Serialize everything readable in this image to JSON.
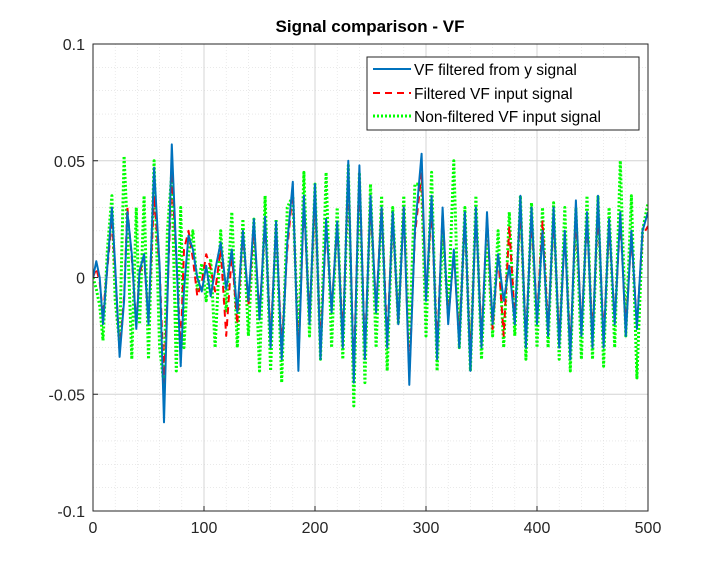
{
  "chart_data": {
    "type": "line",
    "title": "Signal comparison - VF",
    "xlabel": "",
    "ylabel": "",
    "xlim": [
      0,
      500
    ],
    "ylim": [
      -0.1,
      0.1
    ],
    "grid": true,
    "minor_grid": true,
    "legend_position": "top-right",
    "x_ticks": [
      0,
      100,
      200,
      300,
      400,
      500
    ],
    "x_tick_labels": [
      "0",
      "100",
      "200",
      "300",
      "400",
      "500"
    ],
    "y_ticks": [
      -0.1,
      -0.05,
      0,
      0.05,
      0.1
    ],
    "y_tick_labels": [
      "-0.1",
      "-0.05",
      "0",
      "0.05",
      "0.1"
    ],
    "series": [
      {
        "name": "VF filtered from y signal",
        "color": "#0072BD",
        "style": "solid",
        "x": [
          0,
          3,
          6,
          9,
          13,
          17,
          20,
          24,
          28,
          31,
          35,
          39,
          42,
          46,
          50,
          55,
          60,
          64,
          67,
          71,
          75,
          79,
          82,
          86,
          90,
          94,
          98,
          102,
          106,
          110,
          115,
          120,
          125,
          130,
          135,
          140,
          145,
          150,
          155,
          160,
          165,
          170,
          175,
          180,
          185,
          190,
          195,
          200,
          205,
          210,
          215,
          220,
          225,
          230,
          235,
          240,
          245,
          250,
          255,
          260,
          265,
          270,
          275,
          280,
          285,
          290,
          296,
          300,
          305,
          310,
          315,
          320,
          325,
          330,
          335,
          340,
          345,
          350,
          355,
          360,
          365,
          370,
          375,
          380,
          385,
          390,
          395,
          400,
          405,
          410,
          415,
          420,
          425,
          430,
          435,
          440,
          445,
          450,
          455,
          460,
          465,
          470,
          475,
          480,
          485,
          490,
          495,
          500
        ],
        "y": [
          0,
          0.007,
          0,
          -0.02,
          0.005,
          0.03,
          0.005,
          -0.034,
          -0.01,
          0.028,
          0.01,
          -0.022,
          0.003,
          0.01,
          -0.02,
          0.047,
          0.005,
          -0.062,
          -0.01,
          0.057,
          0.01,
          -0.038,
          -0.005,
          0.018,
          0.012,
          0.0,
          -0.006,
          0.005,
          -0.008,
          0.003,
          0.015,
          -0.005,
          0.012,
          -0.015,
          0.02,
          -0.01,
          0.025,
          -0.018,
          0.026,
          -0.03,
          0.024,
          -0.035,
          0.015,
          0.041,
          -0.04,
          0.035,
          -0.02,
          0.04,
          -0.035,
          0.025,
          -0.015,
          0.024,
          -0.03,
          0.05,
          -0.045,
          0.048,
          -0.035,
          0.035,
          -0.015,
          0.03,
          -0.03,
          0.028,
          -0.02,
          0.03,
          -0.046,
          0.02,
          0.053,
          -0.01,
          0.035,
          -0.035,
          0.03,
          -0.02,
          0.012,
          -0.03,
          0.028,
          -0.04,
          0.03,
          -0.03,
          0.028,
          -0.02,
          0.01,
          -0.01,
          0.005,
          -0.02,
          0.035,
          -0.03,
          0.03,
          -0.02,
          0.02,
          -0.025,
          0.03,
          -0.03,
          0.02,
          -0.035,
          0.033,
          -0.025,
          0.028,
          -0.03,
          0.035,
          -0.03,
          0.025,
          -0.02,
          0.028,
          -0.025,
          0.02,
          -0.022,
          0.02,
          0.028
        ]
      },
      {
        "name": "Filtered VF input signal",
        "color": "#FF0000",
        "style": "dashed",
        "x": [
          0,
          3,
          6,
          9,
          13,
          17,
          20,
          24,
          28,
          31,
          35,
          39,
          42,
          46,
          50,
          55,
          60,
          64,
          67,
          71,
          75,
          79,
          82,
          86,
          90,
          94,
          98,
          102,
          106,
          110,
          115,
          120,
          125,
          130,
          135,
          140,
          145,
          150,
          155,
          160,
          165,
          170,
          175,
          180,
          185,
          190,
          195,
          200,
          205,
          210,
          215,
          220,
          225,
          230,
          235,
          240,
          245,
          250,
          255,
          260,
          265,
          270,
          275,
          280,
          285,
          290,
          296,
          300,
          305,
          310,
          315,
          320,
          325,
          330,
          335,
          340,
          345,
          350,
          355,
          360,
          365,
          370,
          375,
          380,
          385,
          390,
          395,
          400,
          405,
          410,
          415,
          420,
          425,
          430,
          435,
          440,
          445,
          450,
          455,
          460,
          465,
          470,
          475,
          480,
          485,
          490,
          495,
          500
        ],
        "y": [
          0,
          0.004,
          -0.002,
          -0.016,
          0.004,
          0.025,
          0.003,
          -0.032,
          -0.008,
          0.03,
          0.008,
          -0.02,
          0.002,
          0.008,
          -0.018,
          0.035,
          0.004,
          -0.045,
          -0.008,
          0.045,
          0.008,
          -0.03,
          0.012,
          0.02,
          0.008,
          -0.008,
          -0.002,
          0.01,
          0.004,
          -0.006,
          0.012,
          -0.025,
          0.01,
          -0.02,
          0.02,
          -0.012,
          0.022,
          -0.016,
          0.024,
          -0.026,
          0.022,
          -0.03,
          0.012,
          0.038,
          -0.035,
          0.032,
          -0.018,
          0.035,
          -0.03,
          0.022,
          -0.013,
          0.022,
          -0.026,
          0.045,
          -0.04,
          0.045,
          -0.032,
          0.032,
          -0.013,
          0.03,
          -0.026,
          0.026,
          -0.02,
          0.03,
          -0.042,
          0.018,
          0.045,
          -0.009,
          0.03,
          -0.03,
          0.028,
          -0.018,
          0.01,
          -0.026,
          0.026,
          -0.035,
          0.028,
          -0.026,
          0.026,
          -0.022,
          0.01,
          -0.025,
          0.022,
          -0.018,
          0.03,
          -0.026,
          0.026,
          -0.018,
          0.024,
          -0.022,
          0.026,
          -0.026,
          0.018,
          -0.03,
          0.028,
          -0.022,
          0.026,
          -0.026,
          0.03,
          -0.026,
          0.022,
          -0.018,
          0.025,
          -0.022,
          0.018,
          -0.02,
          0.018,
          0.022
        ]
      },
      {
        "name": "Non-filtered VF input signal",
        "color": "#00FF00",
        "style": "dotted",
        "x": [
          0,
          3,
          6,
          9,
          13,
          17,
          20,
          24,
          28,
          31,
          35,
          39,
          42,
          46,
          50,
          55,
          60,
          64,
          67,
          71,
          75,
          79,
          82,
          86,
          90,
          94,
          98,
          102,
          106,
          110,
          115,
          120,
          125,
          130,
          135,
          140,
          145,
          150,
          155,
          160,
          165,
          170,
          175,
          180,
          185,
          190,
          195,
          200,
          205,
          210,
          215,
          220,
          225,
          230,
          235,
          240,
          245,
          250,
          255,
          260,
          265,
          270,
          275,
          280,
          285,
          290,
          296,
          300,
          305,
          310,
          315,
          320,
          325,
          330,
          335,
          340,
          345,
          350,
          355,
          360,
          365,
          370,
          375,
          380,
          385,
          390,
          395,
          400,
          405,
          410,
          415,
          420,
          425,
          430,
          435,
          440,
          445,
          450,
          455,
          460,
          465,
          470,
          475,
          480,
          485,
          490,
          495,
          500
        ],
        "y": [
          0,
          -0.005,
          -0.012,
          -0.027,
          0.012,
          0.035,
          -0.01,
          -0.028,
          0.052,
          0.02,
          -0.035,
          0.03,
          -0.02,
          0.035,
          -0.035,
          0.05,
          -0.03,
          -0.046,
          0.02,
          0.045,
          -0.04,
          0.03,
          -0.03,
          0.01,
          0.02,
          -0.005,
          0.006,
          -0.01,
          0.008,
          -0.03,
          0.02,
          -0.015,
          0.028,
          -0.03,
          0.025,
          -0.025,
          0.025,
          -0.04,
          0.035,
          -0.04,
          0.025,
          -0.045,
          0.03,
          0.035,
          -0.03,
          0.045,
          -0.025,
          0.04,
          -0.035,
          0.045,
          -0.03,
          0.03,
          -0.035,
          0.048,
          -0.055,
          0.045,
          -0.045,
          0.04,
          -0.03,
          0.035,
          -0.04,
          0.03,
          -0.02,
          0.035,
          -0.03,
          0.04,
          0.04,
          -0.025,
          0.045,
          -0.04,
          0.02,
          -0.015,
          0.05,
          -0.03,
          0.03,
          -0.04,
          0.035,
          -0.035,
          0.02,
          -0.025,
          0.02,
          -0.03,
          0.028,
          -0.025,
          0.035,
          -0.035,
          0.032,
          -0.03,
          0.03,
          -0.03,
          0.032,
          -0.035,
          0.03,
          -0.04,
          0.03,
          -0.035,
          0.035,
          -0.035,
          0.035,
          -0.038,
          0.03,
          -0.03,
          0.05,
          -0.025,
          0.035,
          -0.043,
          0.02,
          0.032
        ]
      }
    ]
  }
}
